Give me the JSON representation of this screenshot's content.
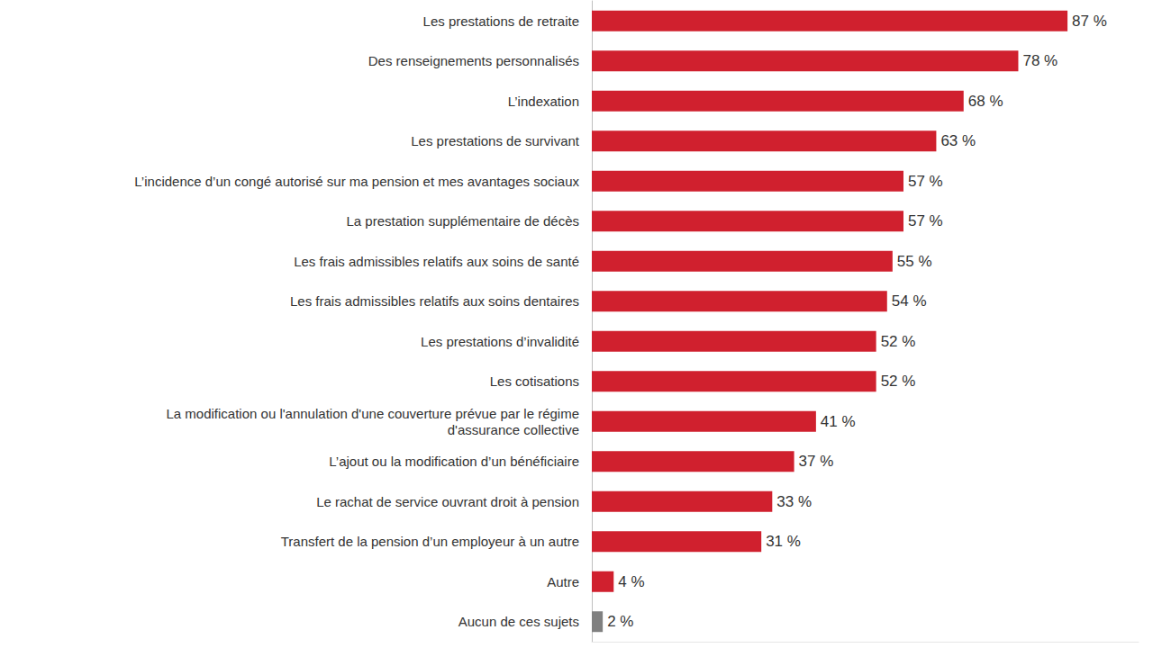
{
  "chart_data": {
    "type": "bar",
    "orientation": "horizontal",
    "categories": [
      "Les prestations de retraite",
      "Des renseignements personnalisés",
      "L’indexation",
      "Les prestations de survivant",
      "L’incidence d’un congé autorisé sur ma pension et mes avantages sociaux",
      "La prestation supplémentaire de décès",
      "Les frais admissibles relatifs aux soins de santé",
      "Les frais admissibles relatifs aux soins dentaires",
      "Les prestations d’invalidité",
      "Les cotisations",
      "La modification ou l'annulation d'une couverture prévue par le régime\nd'assurance collective",
      "L’ajout ou la modification d’un bénéficiaire",
      "Le rachat de service ouvrant droit à pension",
      "Transfert de la pension d’un employeur à un autre",
      "Autre",
      "Aucun de ces sujets"
    ],
    "values": [
      87,
      78,
      68,
      63,
      57,
      57,
      55,
      54,
      52,
      52,
      41,
      37,
      33,
      31,
      4,
      2
    ],
    "value_labels": [
      "87 %",
      "78 %",
      "68 %",
      "63 %",
      "57 %",
      "57 %",
      "55 %",
      "54 %",
      "52 %",
      "52 %",
      "41 %",
      "37 %",
      "33 %",
      "31 %",
      "4 %",
      "2 %"
    ],
    "colors": [
      "#d0202e",
      "#d0202e",
      "#d0202e",
      "#d0202e",
      "#d0202e",
      "#d0202e",
      "#d0202e",
      "#d0202e",
      "#d0202e",
      "#d0202e",
      "#d0202e",
      "#d0202e",
      "#d0202e",
      "#d0202e",
      "#d0202e",
      "#808080"
    ],
    "xlim": [
      0,
      100
    ],
    "data_labels": true,
    "tick_labels": "y",
    "grid": false
  }
}
